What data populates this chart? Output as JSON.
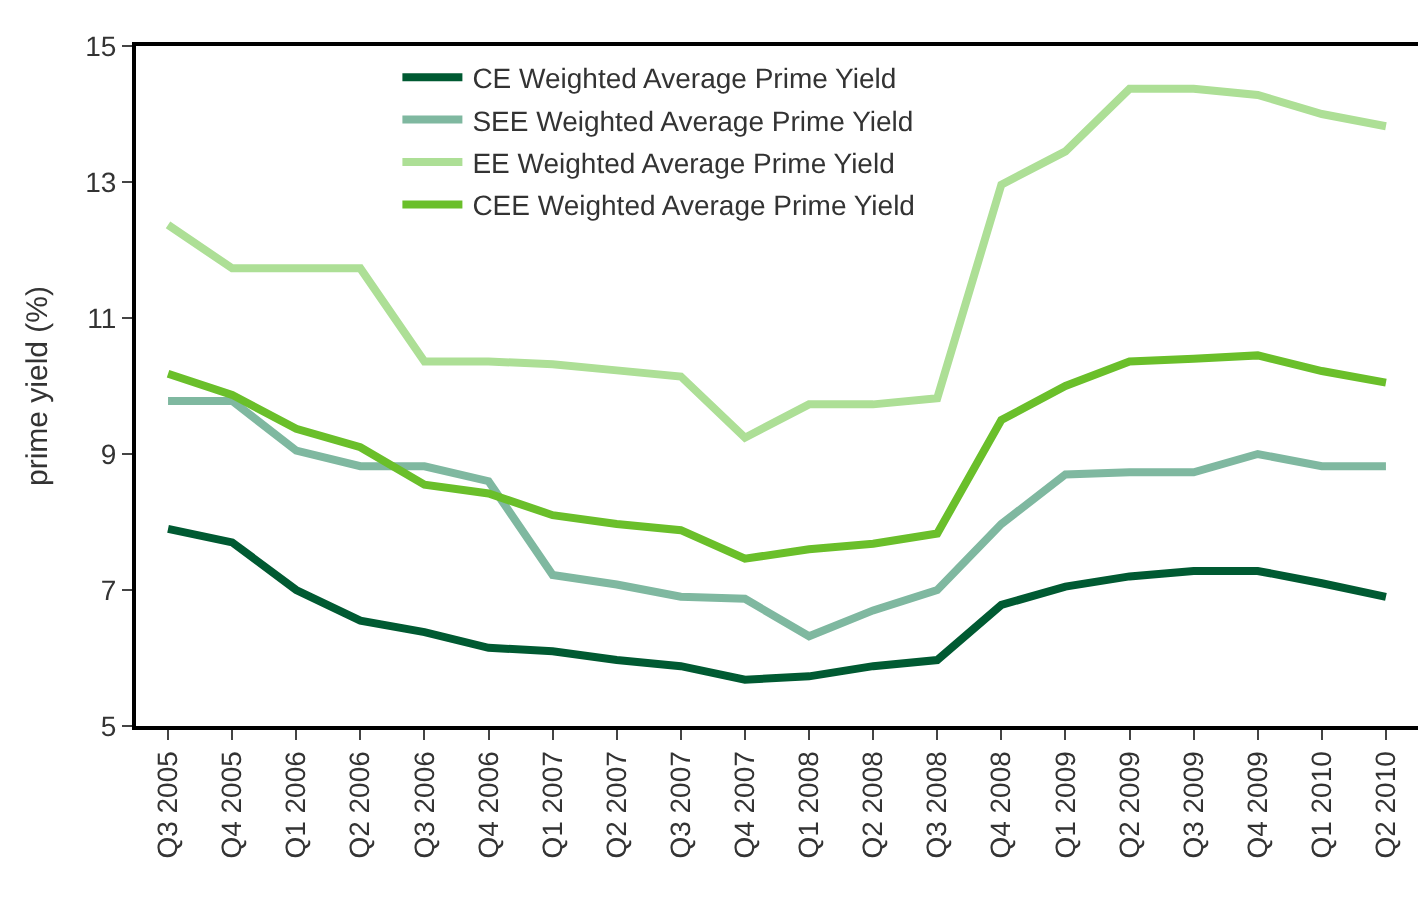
{
  "chart_data": {
    "type": "line",
    "ylabel": "prime yield (%)",
    "categories": [
      "Q3 2005",
      "Q4 2005",
      "Q1 2006",
      "Q2 2006",
      "Q3 2006",
      "Q4 2006",
      "Q1 2007",
      "Q2 2007",
      "Q3 2007",
      "Q4 2007",
      "Q1 2008",
      "Q2 2008",
      "Q3 2008",
      "Q4 2008",
      "Q1 2009",
      "Q2 2009",
      "Q3 2009",
      "Q4 2009",
      "Q1 2010",
      "Q2 2010"
    ],
    "series": [
      {
        "name": "CE Weighted Average Prime Yield",
        "color": "#005a32",
        "values": [
          7.9,
          7.7,
          7.0,
          6.55,
          6.38,
          6.15,
          6.1,
          5.97,
          5.88,
          5.68,
          5.73,
          5.88,
          5.97,
          6.78,
          7.05,
          7.2,
          7.28,
          7.28,
          7.1,
          6.9
        ]
      },
      {
        "name": "SEE Weighted Average Prime Yield",
        "color": "#7fb8a0",
        "values": [
          9.78,
          9.78,
          9.05,
          8.82,
          8.82,
          8.6,
          7.22,
          7.08,
          6.9,
          6.87,
          6.32,
          6.7,
          7.0,
          7.97,
          8.7,
          8.73,
          8.73,
          9.0,
          8.82,
          8.82
        ]
      },
      {
        "name": "EE Weighted Average Prime Yield",
        "color": "#addf96",
        "values": [
          12.37,
          11.73,
          11.73,
          11.73,
          10.36,
          10.36,
          10.32,
          10.23,
          10.14,
          9.24,
          9.73,
          9.73,
          9.82,
          12.96,
          13.45,
          14.37,
          14.37,
          14.28,
          14.0,
          13.82
        ]
      },
      {
        "name": "CEE Weighted Average Prime Yield",
        "color": "#6abf2a",
        "values": [
          10.18,
          9.87,
          9.37,
          9.1,
          8.55,
          8.42,
          8.1,
          7.97,
          7.88,
          7.46,
          7.6,
          7.68,
          7.83,
          9.5,
          10.0,
          10.36,
          10.4,
          10.45,
          10.22,
          10.05
        ]
      }
    ],
    "ylim": [
      5,
      15
    ],
    "yticks": [
      5,
      7,
      9,
      11,
      13,
      15
    ],
    "legend": "top",
    "marker": "none",
    "line_style": "solid"
  }
}
